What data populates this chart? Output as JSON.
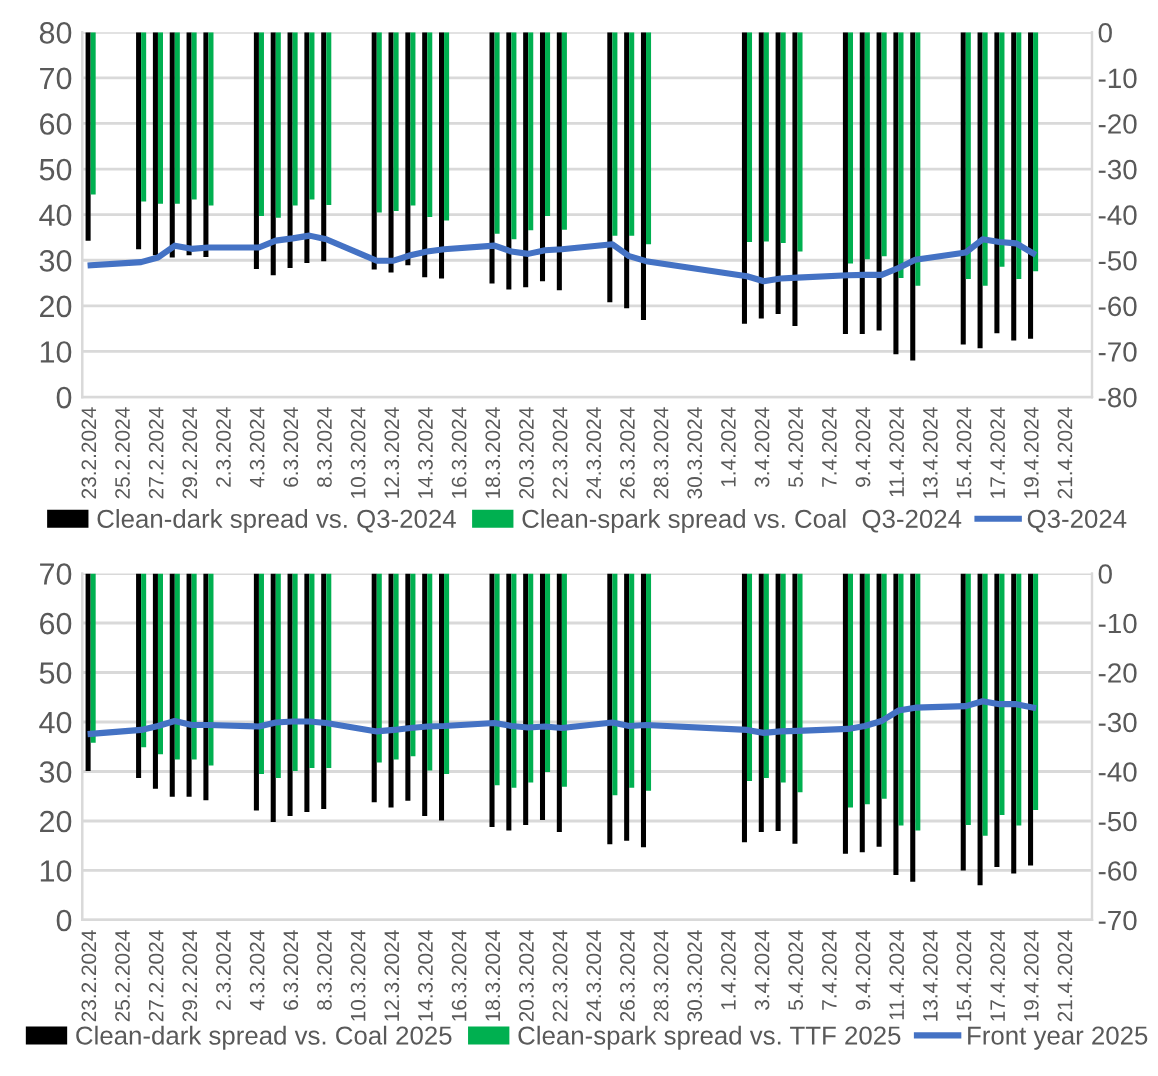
{
  "chart_data": [
    {
      "type": "bar",
      "legend": "bottom",
      "grid": "y",
      "x": [
        "2024-02-23",
        "2024-02-26",
        "2024-02-27",
        "2024-02-28",
        "2024-02-29",
        "2024-03-01",
        "2024-03-04",
        "2024-03-05",
        "2024-03-06",
        "2024-03-07",
        "2024-03-08",
        "2024-03-11",
        "2024-03-12",
        "2024-03-13",
        "2024-03-14",
        "2024-03-15",
        "2024-03-18",
        "2024-03-19",
        "2024-03-20",
        "2024-03-21",
        "2024-03-22",
        "2024-03-25",
        "2024-03-26",
        "2024-03-27",
        "2024-04-02",
        "2024-04-03",
        "2024-04-04",
        "2024-04-05",
        "2024-04-08",
        "2024-04-09",
        "2024-04-10",
        "2024-04-11",
        "2024-04-12",
        "2024-04-15",
        "2024-04-16",
        "2024-04-17",
        "2024-04-18",
        "2024-04-19"
      ],
      "xlim": [
        "2024-02-22T12:00",
        "2024-04-22T12:00"
      ],
      "xticks": [
        {
          "value": "2024-02-23",
          "label": "23.2.2024"
        },
        {
          "value": "2024-02-25",
          "label": "25.2.2024"
        },
        {
          "value": "2024-02-27",
          "label": "27.2.2024"
        },
        {
          "value": "2024-02-29",
          "label": "29.2.2024"
        },
        {
          "value": "2024-03-02",
          "label": "2.3.2024"
        },
        {
          "value": "2024-03-04",
          "label": "4.3.2024"
        },
        {
          "value": "2024-03-06",
          "label": "6.3.2024"
        },
        {
          "value": "2024-03-08",
          "label": "8.3.2024"
        },
        {
          "value": "2024-03-10",
          "label": "10.3.2024"
        },
        {
          "value": "2024-03-12",
          "label": "12.3.2024"
        },
        {
          "value": "2024-03-14",
          "label": "14.3.2024"
        },
        {
          "value": "2024-03-16",
          "label": "16.3.2024"
        },
        {
          "value": "2024-03-18",
          "label": "18.3.2024"
        },
        {
          "value": "2024-03-20",
          "label": "20.3.2024"
        },
        {
          "value": "2024-03-22",
          "label": "22.3.2024"
        },
        {
          "value": "2024-03-24",
          "label": "24.3.2024"
        },
        {
          "value": "2024-03-26",
          "label": "26.3.2024"
        },
        {
          "value": "2024-03-28",
          "label": "28.3.2024"
        },
        {
          "value": "2024-03-30",
          "label": "30.3.2024"
        },
        {
          "value": "2024-04-01",
          "label": "1.4.2024"
        },
        {
          "value": "2024-04-03",
          "label": "3.4.2024"
        },
        {
          "value": "2024-04-05",
          "label": "5.4.2024"
        },
        {
          "value": "2024-04-07",
          "label": "7.4.2024"
        },
        {
          "value": "2024-04-09",
          "label": "9.4.2024"
        },
        {
          "value": "2024-04-11",
          "label": "11.4.2024"
        },
        {
          "value": "2024-04-13",
          "label": "13.4.2024"
        },
        {
          "value": "2024-04-15",
          "label": "15.4.2024"
        },
        {
          "value": "2024-04-17",
          "label": "17.4.2024"
        },
        {
          "value": "2024-04-19",
          "label": "19.4.2024"
        },
        {
          "value": "2024-04-21",
          "label": "21.4.2024"
        }
      ],
      "ylim": [
        0,
        80
      ],
      "yticks": [
        0,
        10,
        20,
        30,
        40,
        50,
        60,
        70,
        80
      ],
      "y2lim": [
        -80,
        0
      ],
      "y2ticks": [
        -80,
        -70,
        -60,
        -50,
        -40,
        -30,
        -20,
        -10,
        0
      ],
      "series": [
        {
          "name": "Clean-dark spread vs. Q3-2024",
          "axis": "y2",
          "color": "#000000",
          "values": [
            -45.7,
            -47.6,
            -48.9,
            -49.4,
            -48.9,
            -49.3,
            -51.9,
            -53.3,
            -51.7,
            -50.6,
            -50.2,
            -52.0,
            -52.7,
            -51.1,
            -53.7,
            -54.0,
            -55.1,
            -56.4,
            -55.9,
            -54.6,
            -56.6,
            -59.2,
            -60.5,
            -63.1,
            -63.9,
            -62.8,
            -61.8,
            -64.4,
            -66.2,
            -66.2,
            -65.4,
            -70.6,
            -72.0,
            -68.5,
            -69.3,
            -66.0,
            -67.6,
            -67.2
          ]
        },
        {
          "name": "Clean-spark spread vs. Coal  Q3-2024",
          "axis": "y2",
          "color": "#00b050",
          "values": [
            -35.6,
            -37.1,
            -37.6,
            -37.6,
            -36.7,
            -38.0,
            -40.3,
            -40.7,
            -38.0,
            -36.7,
            -37.9,
            -39.5,
            -39.2,
            -38.0,
            -40.5,
            -41.3,
            -44.2,
            -45.4,
            -43.4,
            -40.3,
            -43.3,
            -44.6,
            -44.6,
            -46.5,
            -46.0,
            -45.9,
            -46.2,
            -48.1,
            -50.7,
            -49.8,
            -49.1,
            -53.9,
            -55.6,
            -54.1,
            -55.6,
            -51.4,
            -54.1,
            -52.4
          ]
        },
        {
          "name": "Q3-2024",
          "type": "line",
          "axis": "y",
          "color": "#4472c4",
          "values": [
            28.9,
            29.6,
            30.6,
            33.2,
            32.5,
            32.8,
            32.8,
            34.3,
            34.8,
            35.4,
            34.6,
            29.9,
            29.9,
            31.1,
            31.9,
            32.4,
            33.2,
            31.9,
            31.4,
            32.2,
            32.4,
            33.5,
            30.9,
            29.8,
            26.5,
            25.4,
            26.0,
            26.2,
            26.7,
            26.8,
            26.8,
            28.3,
            30.1,
            31.7,
            34.6,
            34.0,
            33.7,
            31.5
          ]
        }
      ]
    },
    {
      "type": "bar",
      "legend": "bottom",
      "grid": "y",
      "x": [
        "2024-02-23",
        "2024-02-26",
        "2024-02-27",
        "2024-02-28",
        "2024-02-29",
        "2024-03-01",
        "2024-03-04",
        "2024-03-05",
        "2024-03-06",
        "2024-03-07",
        "2024-03-08",
        "2024-03-11",
        "2024-03-12",
        "2024-03-13",
        "2024-03-14",
        "2024-03-15",
        "2024-03-18",
        "2024-03-19",
        "2024-03-20",
        "2024-03-21",
        "2024-03-22",
        "2024-03-25",
        "2024-03-26",
        "2024-03-27",
        "2024-04-02",
        "2024-04-03",
        "2024-04-04",
        "2024-04-05",
        "2024-04-08",
        "2024-04-09",
        "2024-04-10",
        "2024-04-11",
        "2024-04-12",
        "2024-04-15",
        "2024-04-16",
        "2024-04-17",
        "2024-04-18",
        "2024-04-19"
      ],
      "xlim": [
        "2024-02-22T12:00",
        "2024-04-22T12:00"
      ],
      "xticks": [
        {
          "value": "2024-02-23",
          "label": "23.2.2024"
        },
        {
          "value": "2024-02-25",
          "label": "25.2.2024"
        },
        {
          "value": "2024-02-27",
          "label": "27.2.2024"
        },
        {
          "value": "2024-02-29",
          "label": "29.2.2024"
        },
        {
          "value": "2024-03-02",
          "label": "2.3.2024"
        },
        {
          "value": "2024-03-04",
          "label": "4.3.2024"
        },
        {
          "value": "2024-03-06",
          "label": "6.3.2024"
        },
        {
          "value": "2024-03-08",
          "label": "8.3.2024"
        },
        {
          "value": "2024-03-10",
          "label": "10.3.2024"
        },
        {
          "value": "2024-03-12",
          "label": "12.3.2024"
        },
        {
          "value": "2024-03-14",
          "label": "14.3.2024"
        },
        {
          "value": "2024-03-16",
          "label": "16.3.2024"
        },
        {
          "value": "2024-03-18",
          "label": "18.3.2024"
        },
        {
          "value": "2024-03-20",
          "label": "20.3.2024"
        },
        {
          "value": "2024-03-22",
          "label": "22.3.2024"
        },
        {
          "value": "2024-03-24",
          "label": "24.3.2024"
        },
        {
          "value": "2024-03-26",
          "label": "26.3.2024"
        },
        {
          "value": "2024-03-28",
          "label": "28.3.2024"
        },
        {
          "value": "2024-03-30",
          "label": "30.3.2024"
        },
        {
          "value": "2024-04-01",
          "label": "1.4.2024"
        },
        {
          "value": "2024-04-03",
          "label": "3.4.2024"
        },
        {
          "value": "2024-04-05",
          "label": "5.4.2024"
        },
        {
          "value": "2024-04-07",
          "label": "7.4.2024"
        },
        {
          "value": "2024-04-09",
          "label": "9.4.2024"
        },
        {
          "value": "2024-04-11",
          "label": "11.4.2024"
        },
        {
          "value": "2024-04-13",
          "label": "13.4.2024"
        },
        {
          "value": "2024-04-15",
          "label": "15.4.2024"
        },
        {
          "value": "2024-04-17",
          "label": "17.4.2024"
        },
        {
          "value": "2024-04-19",
          "label": "19.4.2024"
        },
        {
          "value": "2024-04-21",
          "label": "21.4.2024"
        }
      ],
      "ylim": [
        0,
        70
      ],
      "yticks": [
        0,
        10,
        20,
        30,
        40,
        50,
        60,
        70
      ],
      "y2lim": [
        -70,
        0
      ],
      "y2ticks": [
        -70,
        -60,
        -50,
        -40,
        -30,
        -20,
        -10,
        0
      ],
      "series": [
        {
          "name": "Clean-dark spread vs. Coal 2025",
          "axis": "y2",
          "color": "#000000",
          "values": [
            -39.9,
            -41.3,
            -43.5,
            -45.1,
            -45.1,
            -45.8,
            -47.9,
            -50.2,
            -49.0,
            -48.2,
            -47.6,
            -46.2,
            -47.3,
            -45.9,
            -49.0,
            -49.9,
            -51.2,
            -51.9,
            -50.8,
            -49.8,
            -52.2,
            -54.7,
            -54.0,
            -55.3,
            -54.3,
            -52.2,
            -52.0,
            -54.6,
            -56.6,
            -56.3,
            -55.2,
            -60.9,
            -62.3,
            -60.0,
            -63.0,
            -59.3,
            -60.6,
            -59.0
          ]
        },
        {
          "name": "Clean-spark spread vs. TTF 2025",
          "axis": "y2",
          "color": "#00b050",
          "values": [
            -34.2,
            -35.1,
            -36.5,
            -37.6,
            -37.6,
            -38.8,
            -40.5,
            -41.3,
            -39.9,
            -39.3,
            -39.3,
            -38.2,
            -37.6,
            -36.9,
            -39.8,
            -40.5,
            -42.8,
            -43.3,
            -42.2,
            -40.1,
            -43.1,
            -44.8,
            -43.3,
            -43.9,
            -41.9,
            -41.3,
            -42.2,
            -44.2,
            -47.3,
            -46.6,
            -45.5,
            -50.9,
            -51.9,
            -50.8,
            -53.0,
            -48.8,
            -50.9,
            -47.8
          ]
        },
        {
          "name": "Front year 2025",
          "type": "line",
          "axis": "y",
          "color": "#4472c4",
          "values": [
            37.6,
            38.4,
            39.2,
            40.2,
            39.4,
            39.4,
            39.1,
            39.9,
            40.1,
            40.1,
            39.8,
            38.1,
            38.4,
            38.8,
            39.1,
            39.2,
            39.8,
            39.2,
            38.9,
            39.1,
            38.8,
            39.9,
            39.2,
            39.4,
            38.4,
            37.8,
            38.1,
            38.2,
            38.6,
            39.2,
            40.2,
            42.3,
            42.9,
            43.2,
            44.2,
            43.6,
            43.6,
            42.9
          ]
        }
      ]
    }
  ]
}
